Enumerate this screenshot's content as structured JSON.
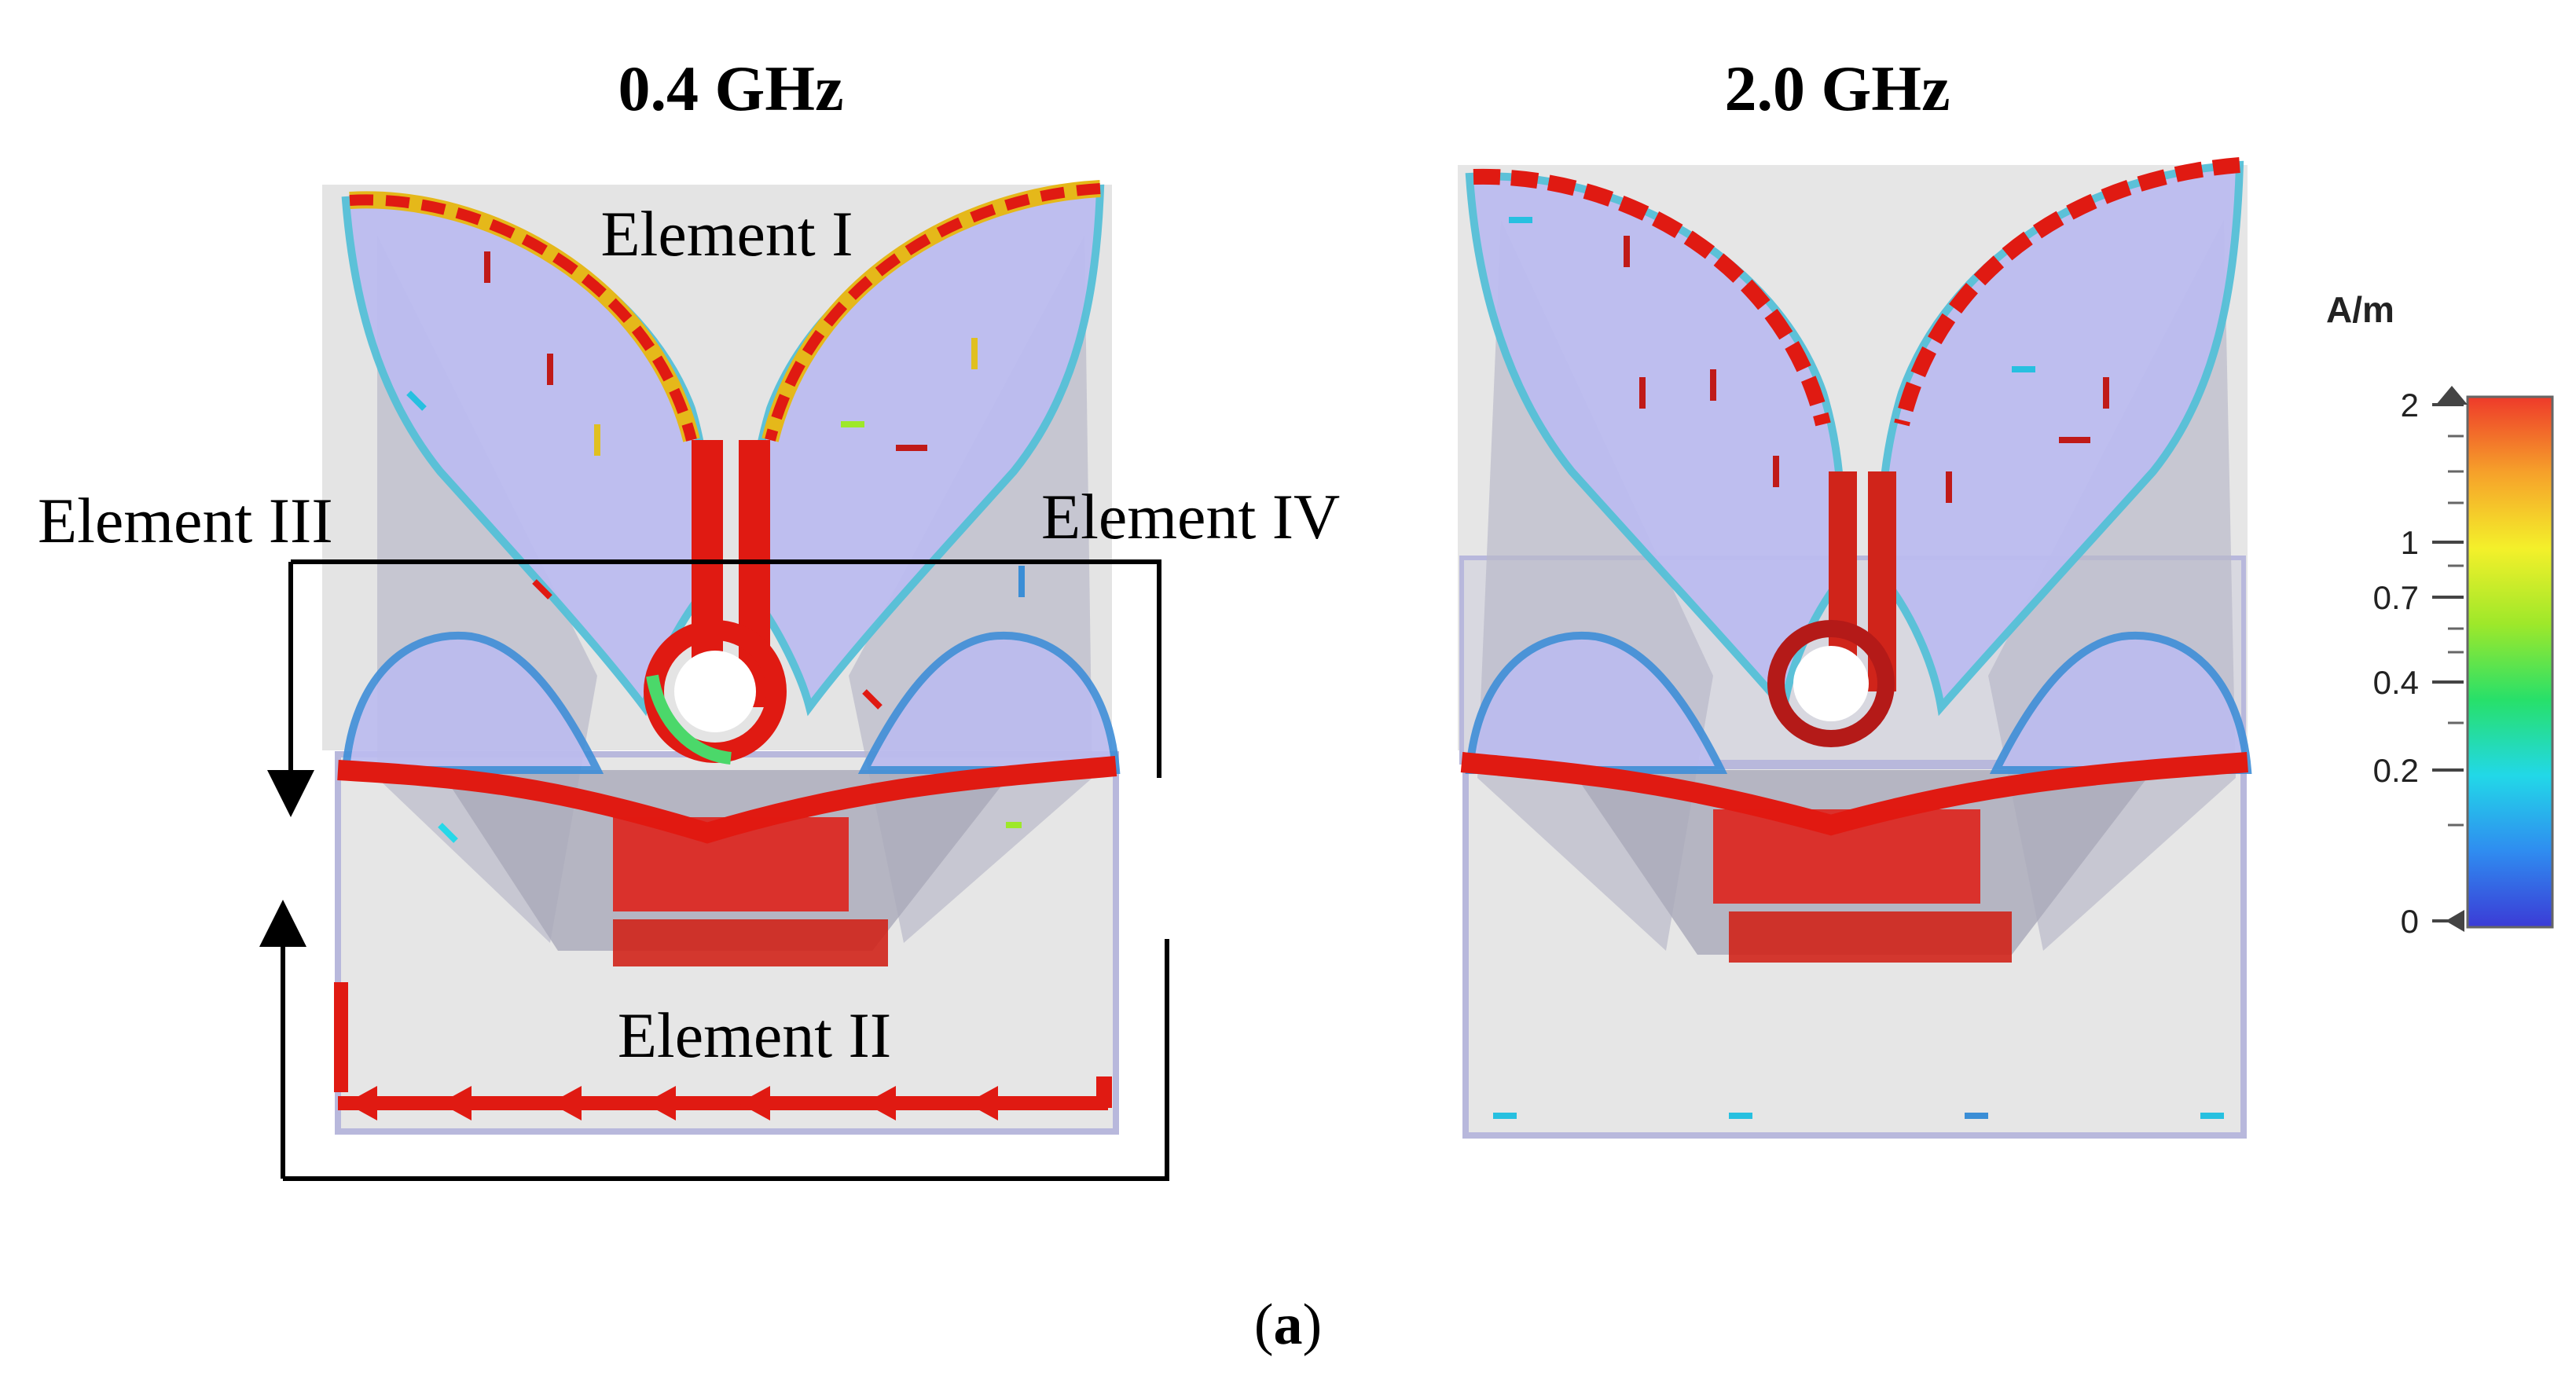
{
  "figure": {
    "caption_open": "(",
    "caption_letter": "a",
    "caption_close": ")"
  },
  "panels": [
    {
      "title": "0.4 GHz",
      "labels": {
        "element_i": "Element I",
        "element_ii": "Element II",
        "element_iii": "Element III",
        "element_iv": "Element IV"
      }
    },
    {
      "title": "2.0 GHz"
    }
  ],
  "colorbar": {
    "unit": "A/m",
    "ticks": [
      "2",
      "1",
      "0.7",
      "0.4",
      "0.2",
      "0"
    ],
    "gradient": [
      "#3b3bd6",
      "#2f8cf0",
      "#22d8e8",
      "#27e06a",
      "#9ee82a",
      "#f4f02a",
      "#f6a12a",
      "#ee3a2a"
    ]
  },
  "colors": {
    "substrate": "#e2e2e2",
    "patch": "#b9b9ef",
    "high_current": "#e01a12",
    "dark_current": "#9a1a12"
  }
}
